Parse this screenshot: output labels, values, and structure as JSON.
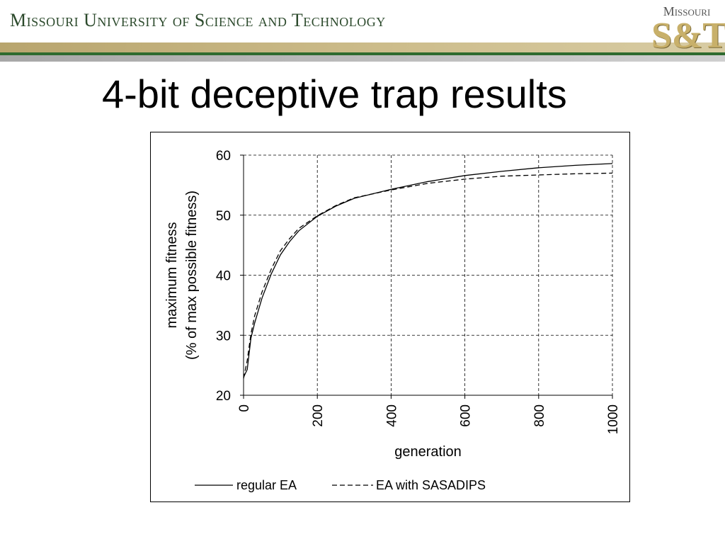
{
  "header": {
    "university": "Missouri University of Science and Technology",
    "logo_top": "Missouri",
    "logo_main": "S&T"
  },
  "slide": {
    "title": "4-bit deceptive trap results"
  },
  "chart_data": {
    "type": "line",
    "title": "",
    "xlabel": "generation",
    "ylabel_line1": "maximum fitness",
    "ylabel_line2": "(% of max possible fitness)",
    "xlim": [
      0,
      1000
    ],
    "ylim": [
      20,
      60
    ],
    "x_ticks": [
      0,
      200,
      400,
      600,
      800,
      1000
    ],
    "x_tick_labels": [
      "0",
      "200",
      "400",
      "600",
      "800",
      "1000"
    ],
    "y_ticks": [
      20,
      30,
      40,
      50,
      60
    ],
    "y_tick_labels": [
      "20",
      "30",
      "40",
      "50",
      "60"
    ],
    "grid": true,
    "legend_position": "bottom",
    "series": [
      {
        "name": "regular EA",
        "style": "solid",
        "x": [
          0,
          10,
          20,
          30,
          50,
          75,
          100,
          125,
          150,
          200,
          250,
          300,
          400,
          500,
          600,
          700,
          800,
          900,
          1000
        ],
        "y": [
          23,
          24.3,
          29.5,
          32,
          36.2,
          40.2,
          43.4,
          45.6,
          47.4,
          49.8,
          51.5,
          52.8,
          54.3,
          55.6,
          56.6,
          57.3,
          57.9,
          58.3,
          58.6
        ]
      },
      {
        "name": "EA with SASADIPS",
        "style": "dashed",
        "x": [
          0,
          10,
          20,
          30,
          50,
          75,
          100,
          125,
          150,
          200,
          250,
          300,
          400,
          500,
          600,
          700,
          800,
          900,
          1000
        ],
        "y": [
          22.8,
          25.8,
          30.2,
          33.2,
          37.2,
          41,
          44.1,
          46.1,
          47.8,
          49.9,
          51.6,
          52.9,
          54.2,
          55.3,
          56,
          56.5,
          56.7,
          56.9,
          57
        ]
      }
    ]
  }
}
